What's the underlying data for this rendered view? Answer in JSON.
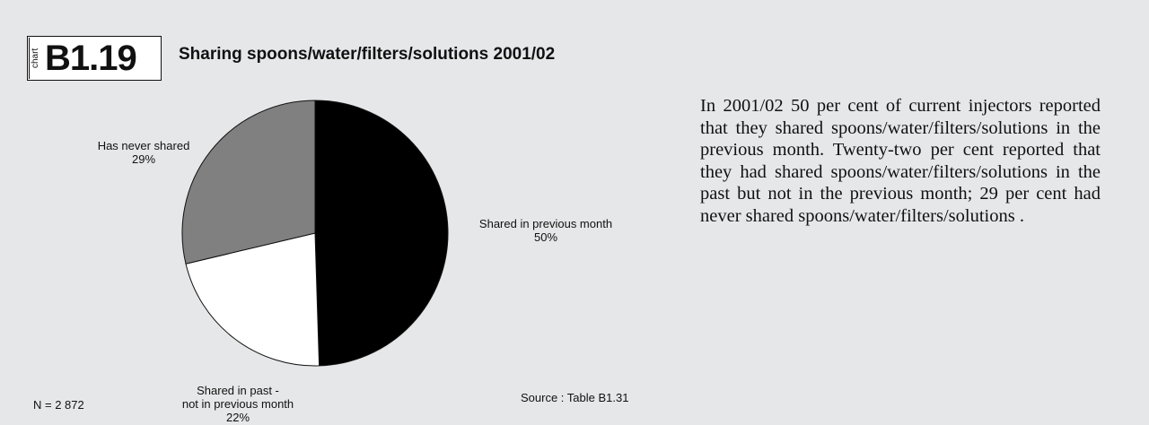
{
  "chart_badge": {
    "word": "chart",
    "number": "B1.19"
  },
  "chart_data": {
    "type": "pie",
    "title": "Sharing spoons/water/filters/solutions 2001/02",
    "slices": [
      {
        "label": "Shared in previous month",
        "value": 50,
        "value_label": "50%",
        "color": "#000000"
      },
      {
        "label": "Shared in past - not in previous month",
        "label_lines": [
          "Shared in past -",
          "not in previous month"
        ],
        "value": 22,
        "value_label": "22%",
        "color": "#ffffff"
      },
      {
        "label": "Has never shared",
        "value": 29,
        "value_label": "29%",
        "color": "#808080"
      }
    ]
  },
  "description": "In 2001/02 50 per cent of current injectors reported that they shared spoons/water/filters/solutions in the previous month. Twenty-two per cent reported that they had shared spoons/water/filters/solutions in the past but not in the previous month; 29 per cent had never shared spoons/water/filters/solutions .",
  "footer": {
    "n_label": "N = 2 872",
    "source": "Source : Table B1.31"
  }
}
